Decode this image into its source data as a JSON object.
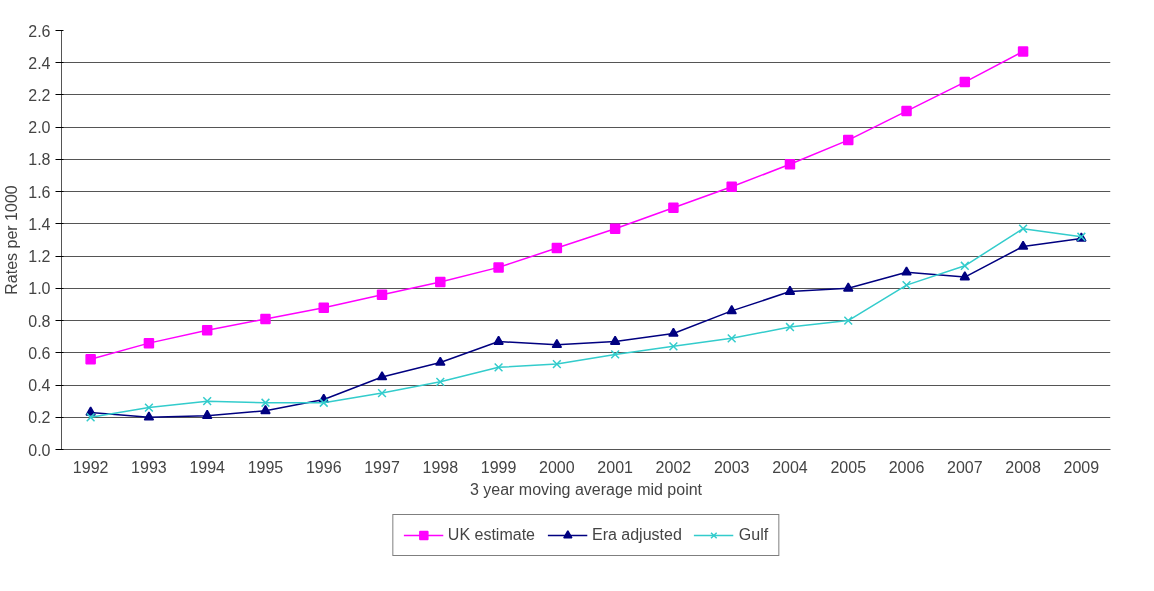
{
  "chart_data": {
    "type": "line",
    "xlabel": "3 year moving average mid point",
    "ylabel": "Rates per 1000",
    "categories": [
      "1992",
      "1993",
      "1994",
      "1995",
      "1996",
      "1997",
      "1998",
      "1999",
      "2000",
      "2001",
      "2002",
      "2003",
      "2004",
      "2005",
      "2006",
      "2007",
      "2008",
      "2009"
    ],
    "ylim": [
      0,
      2.6
    ],
    "yticks": [
      {
        "value": 0,
        "label": "0.0"
      },
      {
        "value": 0.2,
        "label": "0.2"
      },
      {
        "value": 0.4,
        "label": "0.4"
      },
      {
        "value": 0.6,
        "label": "0.6"
      },
      {
        "value": 0.8,
        "label": "0.8"
      },
      {
        "value": 1.0,
        "label": "1.0"
      },
      {
        "value": 1.2,
        "label": "1.2"
      },
      {
        "value": 1.4,
        "label": "1.4"
      },
      {
        "value": 1.6,
        "label": "1.6"
      },
      {
        "value": 1.8,
        "label": "1.8"
      },
      {
        "value": 2.0,
        "label": "2.0"
      },
      {
        "value": 2.2,
        "label": "2.2"
      },
      {
        "value": 2.4,
        "label": "2.4"
      },
      {
        "value": 2.6,
        "label": "2.6"
      }
    ],
    "grid": "y",
    "legend": "bottom",
    "line_style": "solid",
    "series": [
      {
        "name": "UK estimate",
        "color": "#ff00ff",
        "marker": "square",
        "values": [
          0.56,
          0.66,
          0.74,
          0.81,
          0.88,
          0.96,
          1.04,
          1.13,
          1.25,
          1.37,
          1.5,
          1.63,
          1.77,
          1.92,
          2.1,
          2.28,
          2.47,
          null
        ]
      },
      {
        "name": "Era adjusted",
        "color": "#000080",
        "marker": "triangle",
        "values": [
          0.23,
          0.2,
          0.21,
          0.24,
          0.31,
          0.45,
          0.54,
          0.67,
          0.65,
          0.67,
          0.72,
          0.86,
          0.98,
          1.0,
          1.1,
          1.07,
          1.26,
          1.31
        ]
      },
      {
        "name": "Gulf",
        "color": "#33cccc",
        "marker": "cross",
        "values": [
          0.2,
          0.26,
          0.3,
          0.29,
          0.29,
          0.35,
          0.42,
          0.51,
          0.53,
          0.59,
          0.64,
          0.69,
          0.76,
          0.8,
          1.02,
          1.14,
          1.37,
          1.32
        ]
      }
    ]
  }
}
